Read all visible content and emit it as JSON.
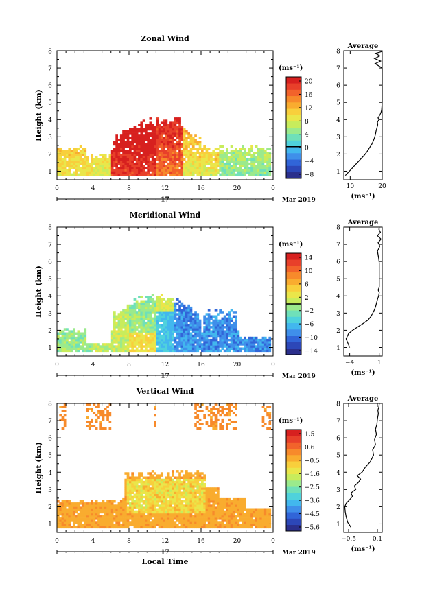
{
  "chart_data": [
    {
      "type": "heatmap",
      "title": "Zonal Wind",
      "ylabel": "Height (km)",
      "xlabel": "",
      "x_ticks": [
        "0",
        "4",
        "8",
        "12",
        "16",
        "20",
        "0"
      ],
      "xlim": [
        0,
        24
      ],
      "y_ticks": [
        "1",
        "2",
        "3",
        "4",
        "5",
        "6",
        "7",
        "8"
      ],
      "ylim": [
        0.5,
        8
      ],
      "date_label": "17",
      "month_label": "Mar 2019",
      "colorbar": {
        "unit_label": "(ms⁻¹)",
        "tick_labels": [
          "20",
          "16",
          "12",
          "8",
          "4",
          "0",
          "−4",
          "−8"
        ],
        "range": [
          -10,
          22
        ],
        "zero_line": 0,
        "colors": [
          "#2b2f8c",
          "#2c47b8",
          "#3165d8",
          "#3f8fea",
          "#42b7ee",
          "#4fd2dc",
          "#6fe0b9",
          "#9bea8c",
          "#c8ec5c",
          "#eae64a",
          "#f8cf3c",
          "#f9ac2f",
          "#f78a2b",
          "#f2632b",
          "#e8402a",
          "#d7201f"
        ]
      },
      "average_profile": {
        "title": "Average",
        "xlabel": "(ms⁻¹)",
        "x_ticks": [
          "10",
          "20"
        ],
        "xlim": [
          8,
          20
        ],
        "ylim": [
          0.5,
          8
        ],
        "x": [
          8.5,
          9.5,
          10.5,
          11.5,
          12.5,
          13.5,
          14.5,
          15.3,
          16.0,
          16.7,
          17.2,
          17.6,
          17.9,
          18.1,
          18.4,
          18.6,
          18.5,
          19.0,
          18.7,
          19.2,
          19.6,
          19.8,
          20,
          20,
          20,
          20,
          20,
          17.8,
          19.5,
          17.6,
          19.3,
          17.9,
          19.8
        ],
        "y": [
          0.75,
          0.95,
          1.15,
          1.35,
          1.55,
          1.75,
          1.95,
          2.15,
          2.35,
          2.55,
          2.75,
          2.95,
          3.15,
          3.35,
          3.55,
          3.7,
          3.85,
          4.0,
          4.1,
          4.25,
          4.4,
          4.55,
          5.0,
          5.5,
          6.0,
          6.5,
          7.0,
          7.25,
          7.4,
          7.55,
          7.7,
          7.85,
          7.95
        ]
      }
    },
    {
      "type": "heatmap",
      "title": "Meridional Wind",
      "ylabel": "Height (km)",
      "xlabel": "",
      "x_ticks": [
        "0",
        "4",
        "8",
        "12",
        "16",
        "20",
        "0"
      ],
      "xlim": [
        0,
        24
      ],
      "y_ticks": [
        "1",
        "2",
        "3",
        "4",
        "5",
        "6",
        "7",
        "8"
      ],
      "ylim": [
        0.5,
        8
      ],
      "date_label": "17",
      "month_label": "Mar 2019",
      "colorbar": {
        "unit_label": "(ms⁻¹)",
        "tick_labels": [
          "14",
          "10",
          "6",
          "2",
          "−2",
          "−6",
          "−10",
          "−14"
        ],
        "range": [
          -16,
          16
        ],
        "zero_line": 0,
        "colors": [
          "#2b2f8c",
          "#2c47b8",
          "#3165d8",
          "#3f8fea",
          "#42b7ee",
          "#4fd2dc",
          "#6fe0b9",
          "#9bea8c",
          "#c8ec5c",
          "#eae64a",
          "#f8cf3c",
          "#f9ac2f",
          "#f78a2b",
          "#f2632b",
          "#e8402a",
          "#d7201f"
        ]
      },
      "average_profile": {
        "title": "Average",
        "xlabel": "(ms⁻¹)",
        "x_ticks": [
          "−4",
          "1"
        ],
        "xlim": [
          -5,
          1.5
        ],
        "ylim": [
          0.5,
          8
        ],
        "x": [
          -4.0,
          -4.6,
          -4.2,
          -3.5,
          -2.6,
          -1.7,
          -0.9,
          -0.4,
          -0.1,
          0.2,
          0.4,
          0.55,
          0.7,
          0.9,
          1.0,
          0.8,
          1.0,
          1.0,
          1.0,
          1.0,
          0.9,
          0.7,
          1.1,
          0.8,
          1.3,
          0.7,
          1.2,
          0.9
        ],
        "y": [
          1.0,
          1.5,
          1.8,
          2.0,
          2.2,
          2.4,
          2.6,
          2.8,
          3.0,
          3.2,
          3.4,
          3.6,
          3.8,
          4.0,
          4.2,
          4.35,
          4.5,
          5.0,
          5.5,
          5.9,
          6.2,
          6.6,
          6.9,
          7.1,
          7.3,
          7.5,
          7.7,
          7.9
        ]
      }
    },
    {
      "type": "heatmap",
      "title": "Vertical Wind",
      "ylabel": "Height (km)",
      "xlabel": "Local Time",
      "x_ticks": [
        "0",
        "4",
        "8",
        "12",
        "16",
        "20",
        "0"
      ],
      "xlim": [
        0,
        24
      ],
      "y_ticks": [
        "1",
        "2",
        "3",
        "4",
        "5",
        "6",
        "7",
        "8"
      ],
      "ylim": [
        0.5,
        8
      ],
      "date_label": "17",
      "month_label": "Mar 2019",
      "colorbar": {
        "unit_label": "(ms⁻¹)",
        "tick_labels": [
          "1.5",
          "0.6",
          "−0.5",
          "−1.6",
          "−2.5",
          "−3.6",
          "−4.5",
          "−5.6"
        ],
        "range": [
          -6.0,
          2.0
        ],
        "colors": [
          "#2b2f8c",
          "#2c47b8",
          "#3165d8",
          "#3f8fea",
          "#42b7ee",
          "#4fd2dc",
          "#6fe0b9",
          "#9bea8c",
          "#c8ec5c",
          "#eae64a",
          "#f8cf3c",
          "#f9ac2f",
          "#f78a2b",
          "#f2632b",
          "#e8402a",
          "#d7201f"
        ]
      },
      "average_profile": {
        "title": "Average",
        "xlabel": "(ms⁻¹)",
        "x_ticks": [
          "−0.5",
          "0.1"
        ],
        "xlim": [
          -0.6,
          0.2
        ],
        "ylim": [
          0.5,
          8
        ],
        "x": [
          -0.45,
          -0.52,
          -0.55,
          -0.57,
          -0.58,
          -0.55,
          -0.48,
          -0.42,
          -0.45,
          -0.35,
          -0.38,
          -0.3,
          -0.25,
          -0.32,
          -0.22,
          -0.15,
          -0.05,
          0.02,
          0.0,
          0.06,
          0.04,
          0.08,
          0.06,
          0.09,
          0.1,
          0.12,
          0.11,
          0.13,
          0.14
        ],
        "y": [
          0.8,
          1.1,
          1.4,
          1.7,
          2.0,
          2.2,
          2.4,
          2.6,
          2.8,
          3.0,
          3.2,
          3.4,
          3.6,
          3.8,
          4.0,
          4.3,
          4.6,
          5.0,
          5.3,
          5.6,
          5.9,
          6.2,
          6.5,
          6.8,
          7.1,
          7.4,
          7.6,
          7.8,
          8.0
        ]
      }
    }
  ]
}
